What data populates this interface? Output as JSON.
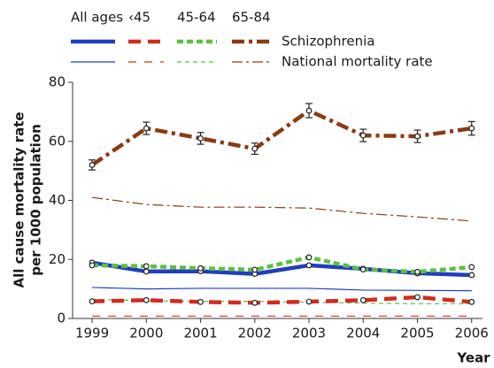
{
  "chart_data": {
    "type": "line",
    "y_label_lines": [
      "All cause mortality rate",
      "per 1000 population"
    ],
    "x_label": "Year",
    "legend_rows": [
      "Schizophrenia",
      "National mortality rate"
    ],
    "x": [
      1999,
      2000,
      2001,
      2002,
      2003,
      2004,
      2005,
      2006
    ],
    "xlim": [
      1998.64,
      2006.2
    ],
    "xticks": [
      1999,
      2000,
      2001,
      2002,
      2003,
      2004,
      2005,
      2006
    ],
    "ylim": [
      0,
      80
    ],
    "yticks": [
      0,
      20,
      40,
      60,
      80
    ],
    "series": [
      {
        "name": "All ages",
        "color": "#1f3fbf",
        "dash": "solid",
        "values": [
          18.9,
          15.9,
          16.0,
          15.1,
          18.0,
          16.8,
          15.3,
          14.7
        ],
        "national": [
          10.5,
          10.0,
          10.2,
          10.2,
          10.2,
          9.6,
          9.5,
          9.4
        ]
      },
      {
        "name": "‹45",
        "color": "#d42a20",
        "dash": "dashed",
        "values": [
          5.8,
          6.2,
          5.6,
          5.3,
          5.7,
          6.2,
          7.2,
          5.6
        ],
        "national": [
          0.8,
          0.8,
          0.8,
          0.8,
          0.8,
          0.8,
          0.8,
          0.8
        ]
      },
      {
        "name": "45-64",
        "color": "#5cc040",
        "dash": "dotted",
        "values": [
          18.0,
          17.7,
          17.0,
          16.5,
          20.7,
          16.6,
          15.8,
          17.4
        ],
        "national": [
          6.5,
          6.0,
          5.8,
          5.8,
          5.5,
          5.2,
          5.0,
          5.0
        ]
      },
      {
        "name": "65-84",
        "color": "#8b3a14",
        "dash": "dashdot",
        "values": [
          52.0,
          64.4,
          61.0,
          57.5,
          70.4,
          62.0,
          61.7,
          64.4
        ],
        "errors": [
          1.7,
          2.1,
          2.0,
          1.9,
          2.4,
          2.1,
          2.1,
          2.3
        ],
        "national": [
          41.0,
          38.6,
          37.7,
          37.7,
          37.4,
          35.6,
          34.4,
          33.0
        ]
      }
    ]
  }
}
